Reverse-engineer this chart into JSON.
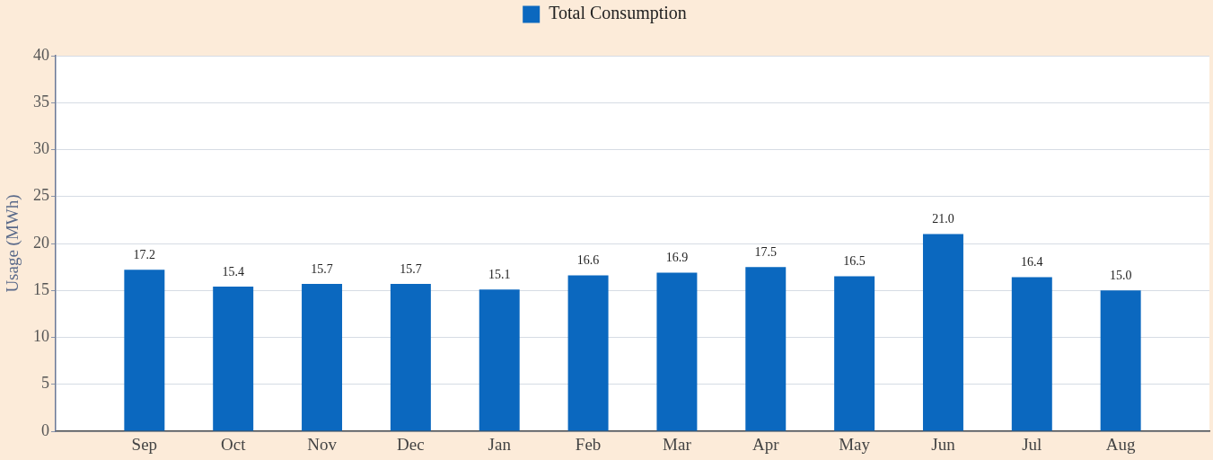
{
  "chart_data": {
    "type": "bar",
    "categories": [
      "Sep",
      "Oct",
      "Nov",
      "Dec",
      "Jan",
      "Feb",
      "Mar",
      "Apr",
      "May",
      "Jun",
      "Jul",
      "Aug"
    ],
    "series": [
      {
        "name": "Total Consumption",
        "color": "#0b68bf",
        "values": [
          17.2,
          15.4,
          15.7,
          15.7,
          15.1,
          16.6,
          16.9,
          17.5,
          16.5,
          21.0,
          16.4,
          15.0
        ],
        "value_labels": [
          "17.2",
          "15.4",
          "15.7",
          "15.7",
          "15.1",
          "16.6",
          "16.9",
          "17.5",
          "16.5",
          "21.0",
          "16.4",
          "15.0"
        ]
      }
    ],
    "ylabel": "Usage (MWh)",
    "ylim": [
      0,
      40
    ],
    "yticks": [
      0,
      5,
      10,
      15,
      20,
      25,
      30,
      35,
      40
    ],
    "grid": "y",
    "legend": "top"
  }
}
